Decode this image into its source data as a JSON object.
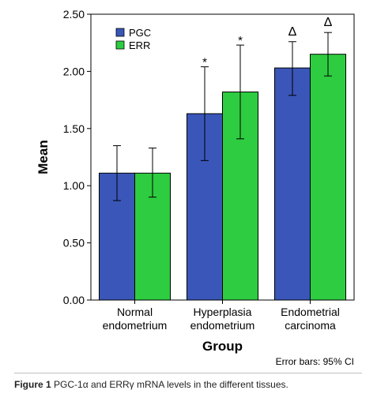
{
  "chart_data": {
    "type": "bar",
    "xlabel": "Group",
    "ylabel": "Mean",
    "ylim": [
      0,
      2.5
    ],
    "yticks": [
      "0.00",
      "0.50",
      "1.00",
      "1.50",
      "2.00",
      "2.50"
    ],
    "categories": [
      [
        "Normal",
        "endometrium"
      ],
      [
        "Hyperplasia",
        "endometrium"
      ],
      [
        "Endometrial",
        "carcinoma"
      ]
    ],
    "series": [
      {
        "name": "PGC",
        "color": "#3a56b8",
        "values": [
          1.11,
          1.63,
          2.03
        ],
        "ci_low": [
          0.87,
          1.22,
          1.79
        ],
        "ci_high": [
          1.35,
          2.04,
          2.26
        ]
      },
      {
        "name": "ERR",
        "color": "#2ecc40",
        "values": [
          1.11,
          1.82,
          2.15
        ],
        "ci_low": [
          0.9,
          1.41,
          1.96
        ],
        "ci_high": [
          1.33,
          2.23,
          2.34
        ]
      }
    ],
    "annotations": [
      {
        "category": 1,
        "series": 0,
        "text": "*"
      },
      {
        "category": 1,
        "series": 1,
        "text": "*"
      },
      {
        "category": 2,
        "series": 0,
        "text": "Δ"
      },
      {
        "category": 2,
        "series": 1,
        "text": "Δ"
      }
    ],
    "note": "Error bars: 95% CI",
    "legend_position": "top-left",
    "grid": false
  },
  "caption": {
    "prefix": "Figure 1",
    "text": "PGC-1α and ERRγ mRNA levels in the different tissues."
  }
}
